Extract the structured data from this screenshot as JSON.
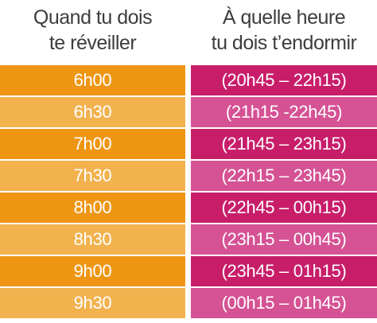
{
  "headers": {
    "wake_line1": "Quand tu dois",
    "wake_line2": "te réveiller",
    "sleep_line1": "À quelle heure",
    "sleep_line2": "tu dois t’endormir"
  },
  "colors": {
    "wake_dark": "#EE9614",
    "wake_light": "#F2B24E",
    "sleep_dark": "#C81E6A",
    "sleep_light": "#D55294",
    "header_text": "#3D3D3D"
  },
  "rows": [
    {
      "wake": "6h00",
      "sleep": "(20h45 – 22h15)"
    },
    {
      "wake": "6h30",
      "sleep": "(21h15 -22h45)"
    },
    {
      "wake": "7h00",
      "sleep": "(21h45 – 23h15)"
    },
    {
      "wake": "7h30",
      "sleep": "(22h15 – 23h45)"
    },
    {
      "wake": "8h00",
      "sleep": "(22h45 – 00h15)"
    },
    {
      "wake": "8h30",
      "sleep": "(23h15 – 00h45)"
    },
    {
      "wake": "9h00",
      "sleep": "(23h45 – 01h15)"
    },
    {
      "wake": "9h30",
      "sleep": "(00h15 – 01h45)"
    }
  ]
}
